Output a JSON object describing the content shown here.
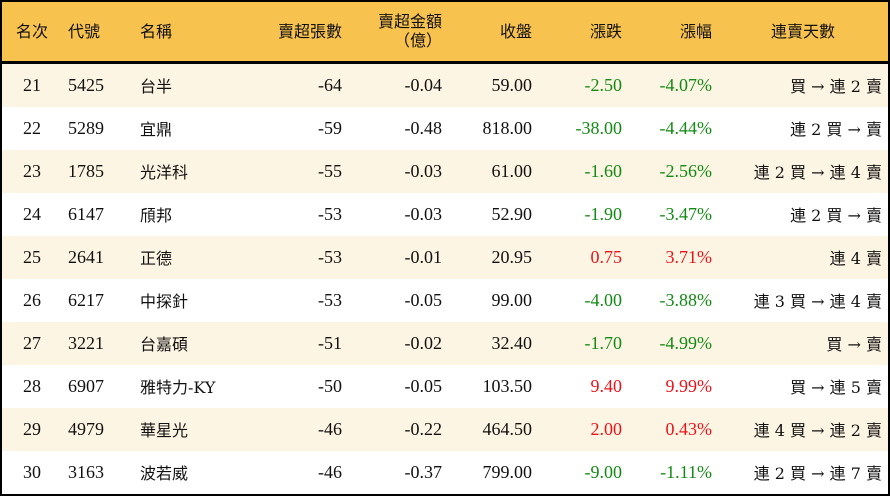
{
  "colors": {
    "header_bg": "#f8c24f",
    "row_alt_bg": "#fdf5e3",
    "up": "#e8141a",
    "down": "#138a13"
  },
  "headers": {
    "rank": "名次",
    "code": "代號",
    "name": "名稱",
    "net_sell_lots": "賣超張數",
    "net_sell_amount": "賣超金額",
    "net_sell_amount_unit": "（億）",
    "close": "收盤",
    "change": "漲跌",
    "change_pct": "漲幅",
    "streak": "連賣天數"
  },
  "rows": [
    {
      "rank": "21",
      "code": "5425",
      "name": "台半",
      "lots": "-64",
      "amount": "-0.04",
      "close": "59.00",
      "change": "-2.50",
      "pct": "-4.07%",
      "dir": "down",
      "streak": "買 → 連 2 賣"
    },
    {
      "rank": "22",
      "code": "5289",
      "name": "宜鼎",
      "lots": "-59",
      "amount": "-0.48",
      "close": "818.00",
      "change": "-38.00",
      "pct": "-4.44%",
      "dir": "down",
      "streak": "連 2 買 → 賣"
    },
    {
      "rank": "23",
      "code": "1785",
      "name": "光洋科",
      "lots": "-55",
      "amount": "-0.03",
      "close": "61.00",
      "change": "-1.60",
      "pct": "-2.56%",
      "dir": "down",
      "streak": "連 2 買 → 連 4 賣"
    },
    {
      "rank": "24",
      "code": "6147",
      "name": "頎邦",
      "lots": "-53",
      "amount": "-0.03",
      "close": "52.90",
      "change": "-1.90",
      "pct": "-3.47%",
      "dir": "down",
      "streak": "連 2 買 → 賣"
    },
    {
      "rank": "25",
      "code": "2641",
      "name": "正德",
      "lots": "-53",
      "amount": "-0.01",
      "close": "20.95",
      "change": "0.75",
      "pct": "3.71%",
      "dir": "up",
      "streak": "連 4 賣"
    },
    {
      "rank": "26",
      "code": "6217",
      "name": "中探針",
      "lots": "-53",
      "amount": "-0.05",
      "close": "99.00",
      "change": "-4.00",
      "pct": "-3.88%",
      "dir": "down",
      "streak": "連 3 買 → 連 4 賣"
    },
    {
      "rank": "27",
      "code": "3221",
      "name": "台嘉碩",
      "lots": "-51",
      "amount": "-0.02",
      "close": "32.40",
      "change": "-1.70",
      "pct": "-4.99%",
      "dir": "down",
      "streak": "買 → 賣"
    },
    {
      "rank": "28",
      "code": "6907",
      "name": "雅特力-KY",
      "lots": "-50",
      "amount": "-0.05",
      "close": "103.50",
      "change": "9.40",
      "pct": "9.99%",
      "dir": "up",
      "streak": "買 → 連 5 賣"
    },
    {
      "rank": "29",
      "code": "4979",
      "name": "華星光",
      "lots": "-46",
      "amount": "-0.22",
      "close": "464.50",
      "change": "2.00",
      "pct": "0.43%",
      "dir": "up",
      "streak": "連 4 買 → 連 2 賣"
    },
    {
      "rank": "30",
      "code": "3163",
      "name": "波若威",
      "lots": "-46",
      "amount": "-0.37",
      "close": "799.00",
      "change": "-9.00",
      "pct": "-1.11%",
      "dir": "down",
      "streak": "連 2 買 → 連 7 賣"
    }
  ]
}
